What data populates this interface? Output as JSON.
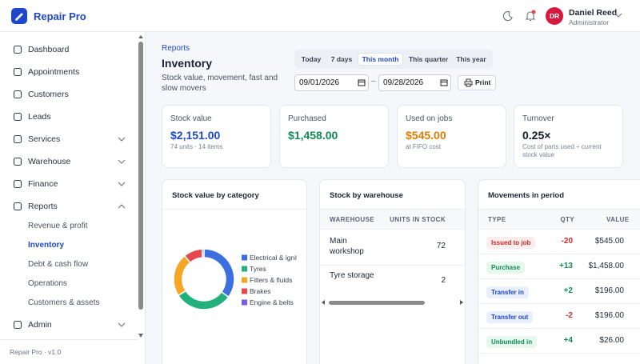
{
  "app": {
    "name": "Repair Pro",
    "version": "Repair Pro · v1.0"
  },
  "user": {
    "initials": "DR",
    "name": "Daniel Reed",
    "role": "Administrator"
  },
  "nav": [
    {
      "label": "Dashboard"
    },
    {
      "label": "Appointments"
    },
    {
      "label": "Customers"
    },
    {
      "label": "Leads"
    },
    {
      "label": "Services",
      "has_menu": true
    },
    {
      "label": "Warehouse",
      "has_menu": true
    },
    {
      "label": "Finance",
      "has_menu": true
    },
    {
      "label": "Reports",
      "has_menu": true,
      "expanded": true,
      "children": [
        "Revenue & profit",
        "Inventory",
        "Debt & cash flow",
        "Operations",
        "Customers & assets"
      ],
      "active_child": 1
    },
    {
      "label": "Admin",
      "has_menu": true
    }
  ],
  "page": {
    "breadcrumb": "Reports",
    "title": "Inventory",
    "subtitle": "Stock value, movement, fast and slow movers"
  },
  "ranges": [
    "Today",
    "7 days",
    "This month",
    "This quarter",
    "This year"
  ],
  "active_range": 2,
  "date_from": "09/01/2026",
  "date_to": "09/28/2026",
  "print": "Print",
  "kpis": [
    {
      "label": "Stock value",
      "value": "$2,151.00",
      "note": "74 units · 14 items",
      "tone": "blue"
    },
    {
      "label": "Purchased",
      "value": "$1,458.00",
      "tone": "green"
    },
    {
      "label": "Used on jobs",
      "value": "$545.00",
      "note": "at FIFO cost",
      "tone": "orange"
    },
    {
      "label": "Turnover",
      "value": "0.25×",
      "note": "Cost of parts used ÷ current stock value",
      "tone": "dark"
    }
  ],
  "category_chart": {
    "type": "pie",
    "title": "Stock value by category",
    "categories": [
      "Electrical & ignition",
      "Tyres",
      "Filters & fluids",
      "Brakes",
      "Engine & belts"
    ],
    "values": [
      35,
      31,
      23,
      10,
      1
    ],
    "colors": [
      "#3b6fe0",
      "#22b07d",
      "#f5a623",
      "#e5484d",
      "#7c5ce6"
    ]
  },
  "warehouse": {
    "title": "Stock by warehouse",
    "columns": [
      "WAREHOUSE",
      "UNITS IN STOCK"
    ],
    "rows": [
      [
        "Main workshop",
        72
      ],
      [
        "Tyre storage",
        2
      ]
    ]
  },
  "movements": {
    "title": "Movements in period",
    "columns": [
      "TYPE",
      "QTY",
      "VALUE"
    ],
    "rows": [
      {
        "type": "Issued to job",
        "qty": "-20",
        "value": "$545.00",
        "tone": "red"
      },
      {
        "type": "Purchase",
        "qty": "+13",
        "value": "$1,458.00",
        "tone": "green"
      },
      {
        "type": "Transfer in",
        "qty": "+2",
        "value": "$196.00",
        "tone": "blue"
      },
      {
        "type": "Transfer out",
        "qty": "-2",
        "value": "$196.00",
        "tone": "blue"
      },
      {
        "type": "Unbundled in",
        "qty": "+4",
        "value": "$26.00",
        "tone": "green"
      }
    ]
  }
}
